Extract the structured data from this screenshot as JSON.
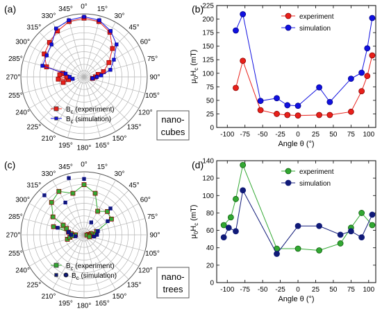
{
  "colors": {
    "red": "#e8201a",
    "red_dark": "#8b0000",
    "blue": "#1010e0",
    "blue_dark": "#00008b",
    "green": "#32a832",
    "green_dark": "#0a5c0a",
    "navy": "#101a78",
    "grid": "#b4b4b4"
  },
  "chart_data": [
    {
      "id": "a",
      "panel_label": "(a)",
      "type": "scatter",
      "subtype": "polar",
      "box_lines": [
        "nano-",
        "cubes"
      ],
      "angle_labels": [
        "0°",
        "15°",
        "30°",
        "45°",
        "60°",
        "75°",
        "90°",
        "105°",
        "120°",
        "135°",
        "150°",
        "165°",
        "180°",
        "195°",
        "210°",
        "225°",
        "240°",
        "255°",
        "270°",
        "285°",
        "300°",
        "315°",
        "330°",
        "345°"
      ],
      "legend_position": "bottom",
      "series": [
        {
          "name": "B",
          "name_sub": "c",
          "name_suffix": " (experiment)",
          "marker": "square-large",
          "color_key": "red",
          "line": true,
          "points": [
            [
              -75,
              135
            ],
            [
              -60,
              160
            ],
            [
              -45,
              170
            ],
            [
              -30,
              185
            ],
            [
              -15,
              200
            ],
            [
              0,
              205
            ],
            [
              15,
              200
            ],
            [
              30,
              180
            ],
            [
              45,
              140
            ],
            [
              60,
              100
            ],
            [
              75,
              70
            ],
            [
              80,
              50
            ],
            [
              90,
              40
            ],
            [
              100,
              30
            ],
            [
              -100,
              55
            ],
            [
              -90,
              60
            ],
            [
              -80,
              75
            ],
            [
              -105,
              75
            ],
            [
              -95,
              90
            ],
            [
              -85,
              85
            ]
          ]
        },
        {
          "name": "B",
          "name_sub": "c",
          "name_suffix": " (simulation)",
          "marker": "square-small",
          "color_key": "blue",
          "line": true,
          "points": [
            [
              -75,
              150
            ],
            [
              -60,
              150
            ],
            [
              -45,
              160
            ],
            [
              -30,
              195
            ],
            [
              -15,
              205
            ],
            [
              0,
              210
            ],
            [
              15,
              205
            ],
            [
              30,
              185
            ],
            [
              45,
              160
            ],
            [
              60,
              120
            ],
            [
              75,
              95
            ],
            [
              85,
              60
            ],
            [
              90,
              45
            ],
            [
              100,
              30
            ],
            [
              -100,
              40
            ],
            [
              -90,
              50
            ],
            [
              -80,
              65
            ]
          ]
        }
      ]
    },
    {
      "id": "b",
      "panel_label": "(b)",
      "type": "line",
      "xlabel": "Angle θ (°)",
      "ylabel": "μ0Hc (mT)",
      "ylabel_main": "μ",
      "ylabel_s1": "0",
      "ylabel_mid": "H",
      "ylabel_s2": "c",
      "ylabel_tail": " (mT)",
      "xlim": [
        -115,
        110
      ],
      "ylim": [
        0,
        225
      ],
      "xticks": [
        -100,
        -75,
        -50,
        -25,
        0,
        25,
        50,
        75,
        100
      ],
      "yticks": [
        0,
        25,
        50,
        75,
        100,
        125,
        150,
        175,
        200,
        225
      ],
      "legend_position": "top-center",
      "series": [
        {
          "name": "experiment",
          "color_key": "red",
          "edge_key": "red_dark",
          "x": [
            -88,
            -78,
            -53,
            -30,
            -15,
            0,
            30,
            45,
            75,
            90,
            98,
            105
          ],
          "y": [
            73,
            123,
            32,
            25,
            23,
            22,
            23,
            23,
            29,
            67,
            95,
            133
          ]
        },
        {
          "name": "simulation",
          "color_key": "blue",
          "edge_key": "blue_dark",
          "x": [
            -88,
            -78,
            -53,
            -30,
            -15,
            0,
            30,
            45,
            75,
            90,
            98,
            105
          ],
          "y": [
            179,
            209,
            49,
            54,
            41,
            40,
            74,
            47,
            90,
            101,
            146,
            202
          ]
        }
      ]
    },
    {
      "id": "c",
      "panel_label": "(c)",
      "type": "scatter",
      "subtype": "polar",
      "box_lines": [
        "nano-",
        "trees"
      ],
      "angle_labels": [
        "0°",
        "15°",
        "30°",
        "45°",
        "60°",
        "75°",
        "90°",
        "105°",
        "120°",
        "135°",
        "150°",
        "165°",
        "180°",
        "195°",
        "210°",
        "225°",
        "240°",
        "255°",
        "270°",
        "285°",
        "300°",
        "315°",
        "330°",
        "345°"
      ],
      "legend_position": "bottom",
      "series": [
        {
          "name": "B",
          "name_sub": "c",
          "name_suffix": " (experiment)",
          "marker": "square-large",
          "color_key": "green",
          "line": true,
          "points": [
            [
              -90,
              30
            ],
            [
              -75,
              110
            ],
            [
              -60,
              125
            ],
            [
              -45,
              160
            ],
            [
              -30,
              175
            ],
            [
              -15,
              150
            ],
            [
              0,
              175
            ],
            [
              15,
              150
            ],
            [
              30,
              95
            ],
            [
              45,
              115
            ],
            [
              60,
              110
            ],
            [
              75,
              45
            ],
            [
              90,
              35
            ],
            [
              80,
              25
            ],
            [
              85,
              15
            ],
            [
              95,
              10
            ],
            [
              -105,
              60
            ],
            [
              -100,
              50
            ],
            [
              -85,
              45
            ],
            [
              -80,
              55
            ],
            [
              -70,
              65
            ],
            [
              -95,
              40
            ],
            [
              -65,
              80
            ],
            [
              100,
              20
            ],
            [
              110,
              20
            ]
          ]
        },
        {
          "name": "B",
          "name_sub": "c",
          "name_suffix": " (simulation)",
          "marker": "square-small",
          "color_key": "navy",
          "line": false,
          "points": [
            [
              -75,
              95
            ],
            [
              -45,
              195
            ],
            [
              -30,
              130
            ],
            [
              -15,
              205
            ],
            [
              0,
              195
            ],
            [
              30,
              50
            ],
            [
              45,
              130
            ],
            [
              60,
              95
            ],
            [
              75,
              50
            ],
            [
              -100,
              30
            ],
            [
              -90,
              45
            ],
            [
              -80,
              55
            ],
            [
              100,
              35
            ],
            [
              90,
              45
            ]
          ]
        }
      ]
    },
    {
      "id": "d",
      "panel_label": "(d)",
      "type": "line",
      "xlabel": "Angle θ (°)",
      "ylabel": "μ0Hc (mT)",
      "ylabel_main": "μ",
      "ylabel_s1": "0",
      "ylabel_mid": "H",
      "ylabel_s2": "c",
      "ylabel_tail": " (mT)",
      "xlim": [
        -115,
        110
      ],
      "ylim": [
        0,
        140
      ],
      "xticks": [
        -100,
        -75,
        -50,
        -25,
        0,
        25,
        50,
        75,
        100
      ],
      "yticks": [
        0,
        20,
        40,
        60,
        80,
        100,
        120,
        140
      ],
      "legend_position": "top-center",
      "series": [
        {
          "name": "experiment",
          "color_key": "green",
          "edge_key": "green_dark",
          "x": [
            -105,
            -95,
            -88,
            -78,
            -30,
            0,
            30,
            60,
            75,
            90,
            105
          ],
          "y": [
            66,
            75,
            96,
            135,
            39,
            39,
            37,
            45,
            63,
            80,
            66
          ]
        },
        {
          "name": "simulation",
          "color_key": "navy",
          "edge_key": "navy",
          "x": [
            -105,
            -98,
            -88,
            -78,
            -30,
            0,
            30,
            60,
            75,
            90,
            105
          ],
          "y": [
            52,
            63,
            59,
            106,
            33,
            65,
            65,
            55,
            59,
            52,
            78
          ]
        }
      ]
    }
  ]
}
